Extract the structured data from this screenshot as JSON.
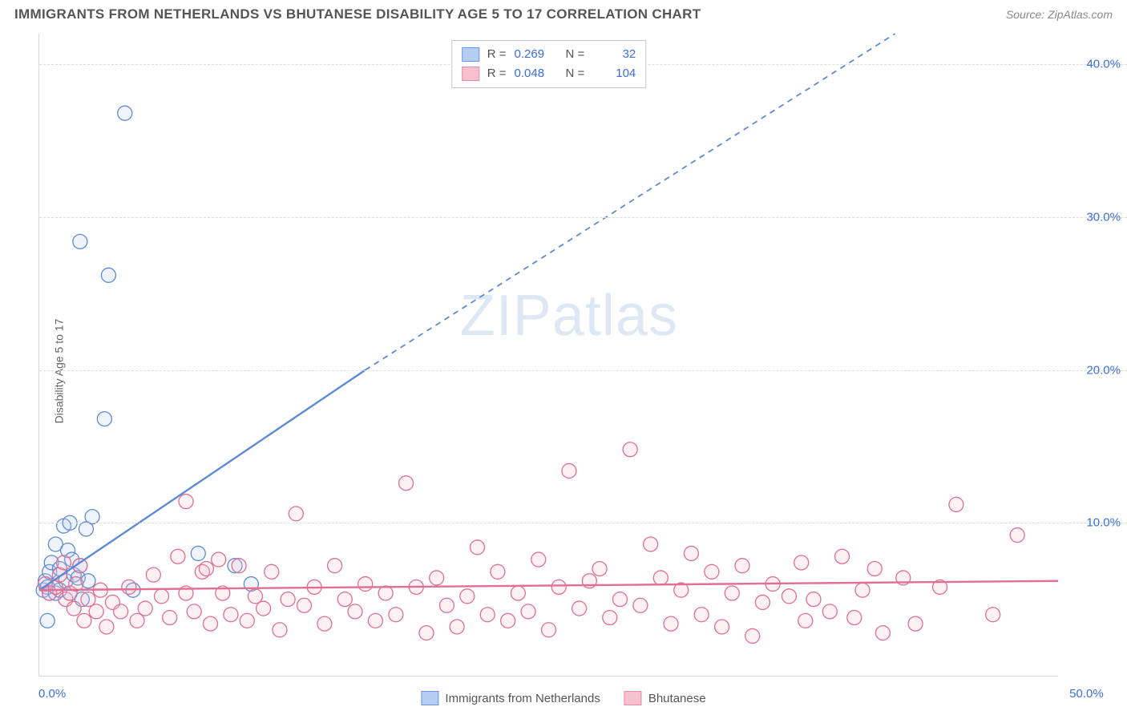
{
  "header": {
    "title": "IMMIGRANTS FROM NETHERLANDS VS BHUTANESE DISABILITY AGE 5 TO 17 CORRELATION CHART",
    "source": "Source: ZipAtlas.com"
  },
  "watermark": {
    "a": "ZIP",
    "b": "atlas"
  },
  "chart": {
    "type": "scatter",
    "ylabel": "Disability Age 5 to 17",
    "background_color": "#ffffff",
    "grid_color": "#dcdcdc",
    "axis_color": "#d8d8d8",
    "tick_label_color": "#3a6fd8",
    "xlim": [
      0,
      50
    ],
    "ylim": [
      0,
      42
    ],
    "xticks": [
      {
        "v": 0,
        "l": "0.0%"
      },
      {
        "v": 50,
        "l": "50.0%"
      }
    ],
    "yticks": [
      {
        "v": 10,
        "l": "10.0%"
      },
      {
        "v": 20,
        "l": "20.0%"
      },
      {
        "v": 30,
        "l": "30.0%"
      },
      {
        "v": 40,
        "l": "40.0%"
      }
    ],
    "legend_box": {
      "rows": [
        {
          "swatch_fill": "#b6cdf2",
          "swatch_border": "#6a98e0",
          "r": "0.269",
          "n": "32"
        },
        {
          "swatch_fill": "#f6c0cf",
          "swatch_border": "#e989a8",
          "r": "0.048",
          "n": "104"
        }
      ],
      "r_label": "R =",
      "n_label": "N ="
    },
    "bottom_legend": [
      {
        "swatch_fill": "#b6cdf2",
        "swatch_border": "#6a98e0",
        "label": "Immigrants from Netherlands"
      },
      {
        "swatch_fill": "#f6c0cf",
        "swatch_border": "#e989a8",
        "label": "Bhutanese"
      }
    ],
    "marker_radius": 9,
    "series": [
      {
        "name": "netherlands",
        "fill": "#b6cdf2",
        "stroke": "#5d8ad6",
        "trend": {
          "x1": 0,
          "y1": 5.6,
          "x2": 16,
          "y2": 20.0,
          "x2_dash": 42,
          "y2_dash": 42
        },
        "points": [
          [
            0.2,
            5.6
          ],
          [
            0.3,
            6.2
          ],
          [
            0.4,
            5.8
          ],
          [
            0.5,
            6.8
          ],
          [
            0.5,
            5.4
          ],
          [
            0.6,
            7.4
          ],
          [
            0.8,
            8.6
          ],
          [
            0.8,
            5.4
          ],
          [
            1.0,
            5.6
          ],
          [
            1.0,
            7.0
          ],
          [
            1.2,
            9.8
          ],
          [
            1.3,
            6.2
          ],
          [
            1.4,
            8.2
          ],
          [
            1.5,
            10.0
          ],
          [
            1.5,
            5.4
          ],
          [
            1.6,
            7.6
          ],
          [
            1.7,
            6.6
          ],
          [
            1.9,
            6.4
          ],
          [
            2.0,
            7.2
          ],
          [
            2.1,
            5.0
          ],
          [
            2.3,
            9.6
          ],
          [
            2.4,
            6.2
          ],
          [
            2.6,
            10.4
          ],
          [
            0.4,
            3.6
          ],
          [
            3.2,
            16.8
          ],
          [
            2.0,
            28.4
          ],
          [
            3.4,
            26.2
          ],
          [
            4.2,
            36.8
          ],
          [
            4.6,
            5.6
          ],
          [
            7.8,
            8.0
          ],
          [
            9.6,
            7.2
          ],
          [
            10.4,
            6.0
          ]
        ]
      },
      {
        "name": "bhutanese",
        "fill": "#f6c0cf",
        "stroke": "#e06f92",
        "trend": {
          "x1": 0,
          "y1": 5.6,
          "x2": 50,
          "y2": 6.2
        },
        "points": [
          [
            0.3,
            6.0
          ],
          [
            0.5,
            5.4
          ],
          [
            0.8,
            5.8
          ],
          [
            1.0,
            6.6
          ],
          [
            1.2,
            7.4
          ],
          [
            1.3,
            5.0
          ],
          [
            1.5,
            5.4
          ],
          [
            1.7,
            4.4
          ],
          [
            1.8,
            6.0
          ],
          [
            2.0,
            7.2
          ],
          [
            2.2,
            3.6
          ],
          [
            2.4,
            5.0
          ],
          [
            2.8,
            4.2
          ],
          [
            3.0,
            5.6
          ],
          [
            3.3,
            3.2
          ],
          [
            3.6,
            4.8
          ],
          [
            4.0,
            4.2
          ],
          [
            4.4,
            5.8
          ],
          [
            4.8,
            3.6
          ],
          [
            5.2,
            4.4
          ],
          [
            5.6,
            6.6
          ],
          [
            6.0,
            5.2
          ],
          [
            6.4,
            3.8
          ],
          [
            6.8,
            7.8
          ],
          [
            7.2,
            11.4
          ],
          [
            7.2,
            5.4
          ],
          [
            7.6,
            4.2
          ],
          [
            8.0,
            6.8
          ],
          [
            8.2,
            7.0
          ],
          [
            8.4,
            3.4
          ],
          [
            8.8,
            7.6
          ],
          [
            9.0,
            5.4
          ],
          [
            9.4,
            4.0
          ],
          [
            9.8,
            7.2
          ],
          [
            10.2,
            3.6
          ],
          [
            10.6,
            5.2
          ],
          [
            11.0,
            4.4
          ],
          [
            11.4,
            6.8
          ],
          [
            11.8,
            3.0
          ],
          [
            12.2,
            5.0
          ],
          [
            12.6,
            10.6
          ],
          [
            13.0,
            4.6
          ],
          [
            13.5,
            5.8
          ],
          [
            14.0,
            3.4
          ],
          [
            14.5,
            7.2
          ],
          [
            15.0,
            5.0
          ],
          [
            15.5,
            4.2
          ],
          [
            16.0,
            6.0
          ],
          [
            16.5,
            3.6
          ],
          [
            17.0,
            5.4
          ],
          [
            17.5,
            4.0
          ],
          [
            18.0,
            12.6
          ],
          [
            18.5,
            5.8
          ],
          [
            19.0,
            2.8
          ],
          [
            19.5,
            6.4
          ],
          [
            20.0,
            4.6
          ],
          [
            20.5,
            3.2
          ],
          [
            21.0,
            5.2
          ],
          [
            21.5,
            8.4
          ],
          [
            22.0,
            4.0
          ],
          [
            22.5,
            6.8
          ],
          [
            23.0,
            3.6
          ],
          [
            23.5,
            5.4
          ],
          [
            24.0,
            4.2
          ],
          [
            24.5,
            7.6
          ],
          [
            25.0,
            3.0
          ],
          [
            25.5,
            5.8
          ],
          [
            26.0,
            13.4
          ],
          [
            26.5,
            4.4
          ],
          [
            27.0,
            6.2
          ],
          [
            27.5,
            7.0
          ],
          [
            28.0,
            3.8
          ],
          [
            28.5,
            5.0
          ],
          [
            29.0,
            14.8
          ],
          [
            29.5,
            4.6
          ],
          [
            30.0,
            8.6
          ],
          [
            30.5,
            6.4
          ],
          [
            31.0,
            3.4
          ],
          [
            31.5,
            5.6
          ],
          [
            32.0,
            8.0
          ],
          [
            32.5,
            4.0
          ],
          [
            33.0,
            6.8
          ],
          [
            33.5,
            3.2
          ],
          [
            34.0,
            5.4
          ],
          [
            34.5,
            7.2
          ],
          [
            35.0,
            2.6
          ],
          [
            35.5,
            4.8
          ],
          [
            36.0,
            6.0
          ],
          [
            36.8,
            5.2
          ],
          [
            37.4,
            7.4
          ],
          [
            37.6,
            3.6
          ],
          [
            38.0,
            5.0
          ],
          [
            38.8,
            4.2
          ],
          [
            39.4,
            7.8
          ],
          [
            40.0,
            3.8
          ],
          [
            40.4,
            5.6
          ],
          [
            41.4,
            2.8
          ],
          [
            42.4,
            6.4
          ],
          [
            45.0,
            11.2
          ],
          [
            46.8,
            4.0
          ],
          [
            48.0,
            9.2
          ],
          [
            41.0,
            7.0
          ],
          [
            43.0,
            3.4
          ],
          [
            44.2,
            5.8
          ]
        ]
      }
    ]
  }
}
